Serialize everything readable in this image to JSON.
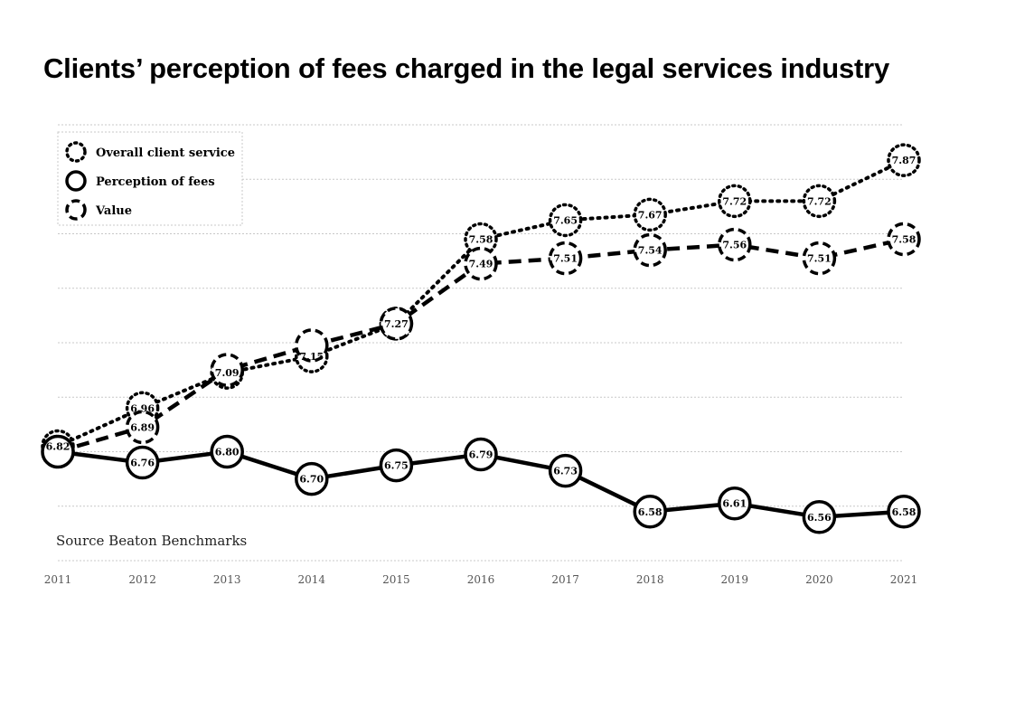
{
  "chart_data": {
    "type": "line",
    "title": "Clients’ perception of fees charged in the legal services industry",
    "xlabel": "",
    "ylabel": "",
    "categories": [
      "2011",
      "2012",
      "2013",
      "2014",
      "2015",
      "2016",
      "2017",
      "2018",
      "2019",
      "2020",
      "2021"
    ],
    "ylim": [
      6.4,
      8.0
    ],
    "grid": true,
    "legend_position": "top-left",
    "annotation": "Source Beaton Benchmarks",
    "series": [
      {
        "name": "Overall client service",
        "style": "dotted",
        "values": [
          6.82,
          6.96,
          7.09,
          7.15,
          7.27,
          7.58,
          7.65,
          7.67,
          7.72,
          7.72,
          7.87
        ],
        "labels": [
          "6.82",
          "6.96",
          "7.09",
          "7.15",
          "7.27",
          "7.58",
          "7.65",
          "7.67",
          "7.72",
          "7.72",
          "7.87"
        ]
      },
      {
        "name": "Perception of fees",
        "style": "solid",
        "values": [
          6.8,
          6.76,
          6.8,
          6.7,
          6.75,
          6.79,
          6.73,
          6.58,
          6.61,
          6.56,
          6.58
        ],
        "labels": [
          "",
          "6.76",
          "6.80",
          "6.70",
          "6.75",
          "6.79",
          "6.73",
          "6.58",
          "6.61",
          "6.56",
          "6.58"
        ]
      },
      {
        "name": "Value",
        "style": "dashed",
        "values": [
          6.8,
          6.89,
          7.1,
          7.19,
          7.27,
          7.49,
          7.51,
          7.54,
          7.56,
          7.51,
          7.58
        ],
        "labels": [
          "",
          "6.89",
          "",
          "",
          "",
          "7.49",
          "7.51",
          "7.54",
          "7.56",
          "7.51",
          "7.58"
        ]
      }
    ]
  }
}
